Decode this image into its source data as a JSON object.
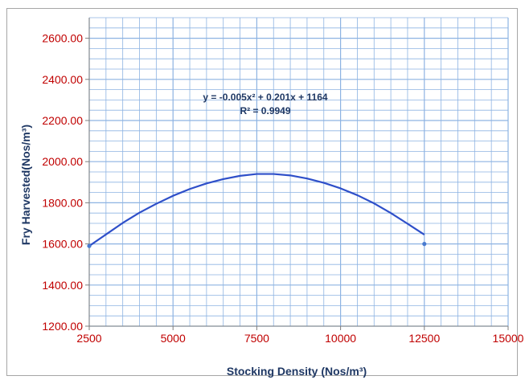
{
  "chart_data": {
    "type": "scatter",
    "xlabel": "Stocking Density (Nos/m³)",
    "ylabel": "Fry Harvested(Nos/m³)",
    "xlim": [
      2500,
      15000
    ],
    "ylim": [
      1200,
      2700
    ],
    "x_ticks": [
      2500,
      5000,
      7500,
      10000,
      12500,
      15000
    ],
    "x_tick_labels": [
      "2500",
      "5000",
      "7500",
      "10000",
      "12500",
      "15000"
    ],
    "y_ticks": [
      1200,
      1400,
      1600,
      1800,
      2000,
      2200,
      2400,
      2600
    ],
    "y_tick_labels": [
      "1200.00",
      "1400.00",
      "1600.00",
      "1800.00",
      "2000.00",
      "2200.00",
      "2400.00",
      "2600.00"
    ],
    "x_minor_step": 500,
    "y_minor_step": 50,
    "grid": true,
    "series": [
      {
        "points": [
          {
            "x": 2500,
            "y": 1590
          },
          {
            "x": 12500,
            "y": 1600
          }
        ]
      }
    ],
    "trendline": {
      "type": "polynomial",
      "x": [
        2500,
        3000,
        3500,
        4000,
        4500,
        5000,
        5500,
        6000,
        6500,
        7000,
        7500,
        8000,
        8500,
        9000,
        9500,
        10000,
        10500,
        11000,
        11500,
        12000,
        12500
      ],
      "y": [
        1590,
        1646,
        1702,
        1752,
        1795,
        1834,
        1867,
        1894,
        1915,
        1931,
        1940,
        1940,
        1933,
        1918,
        1897,
        1870,
        1837,
        1797,
        1750,
        1698,
        1645
      ]
    },
    "annotations": [
      "y = -0.005x² + 0.201x + 1164",
      "R² = 0.9949"
    ],
    "colors": {
      "line": "#2e4fc9",
      "marker": "#4a7bd0",
      "grid": "#8db3e2",
      "tick_labels": "#c00000",
      "axis_titles": "#1f3864"
    }
  }
}
